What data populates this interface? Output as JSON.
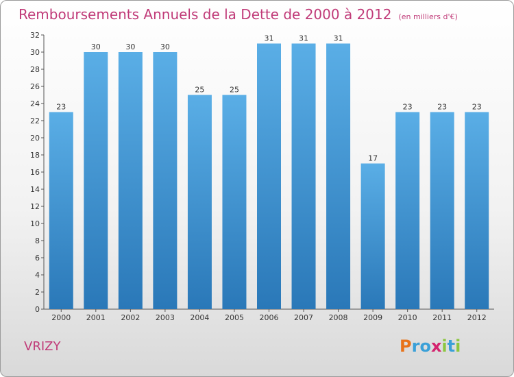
{
  "header": {
    "title": "Remboursements Annuels de la Dette de 2000 à 2012",
    "subtitle": "(en milliers d'€)"
  },
  "footer": {
    "commune": "VRIZY",
    "logo_letters": [
      "P",
      "r",
      "o",
      "x",
      "i",
      "t",
      "i"
    ],
    "logo_colors": [
      "#e8731a",
      "#3aa0d8",
      "#3aa0d8",
      "#d4236e",
      "#8cc63f",
      "#3aa0d8",
      "#8cc63f"
    ]
  },
  "colors": {
    "bar_top": "#5aaee6",
    "bar_bottom": "#2a78b8",
    "title": "#c03a78"
  },
  "chart_data": {
    "type": "bar",
    "title": "Remboursements Annuels de la Dette de 2000 à 2012",
    "subtitle": "(en milliers d'€)",
    "xlabel": "",
    "ylabel": "",
    "categories": [
      "2000",
      "2001",
      "2002",
      "2003",
      "2004",
      "2005",
      "2006",
      "2007",
      "2008",
      "2009",
      "2010",
      "2011",
      "2012"
    ],
    "values": [
      23,
      30,
      30,
      30,
      25,
      25,
      31,
      31,
      31,
      17,
      23,
      23,
      23
    ],
    "ylim": [
      0,
      32
    ],
    "yticks": [
      0,
      2,
      4,
      6,
      8,
      10,
      12,
      14,
      16,
      18,
      20,
      22,
      24,
      26,
      28,
      30,
      32
    ],
    "grid": false,
    "legend": "none"
  }
}
